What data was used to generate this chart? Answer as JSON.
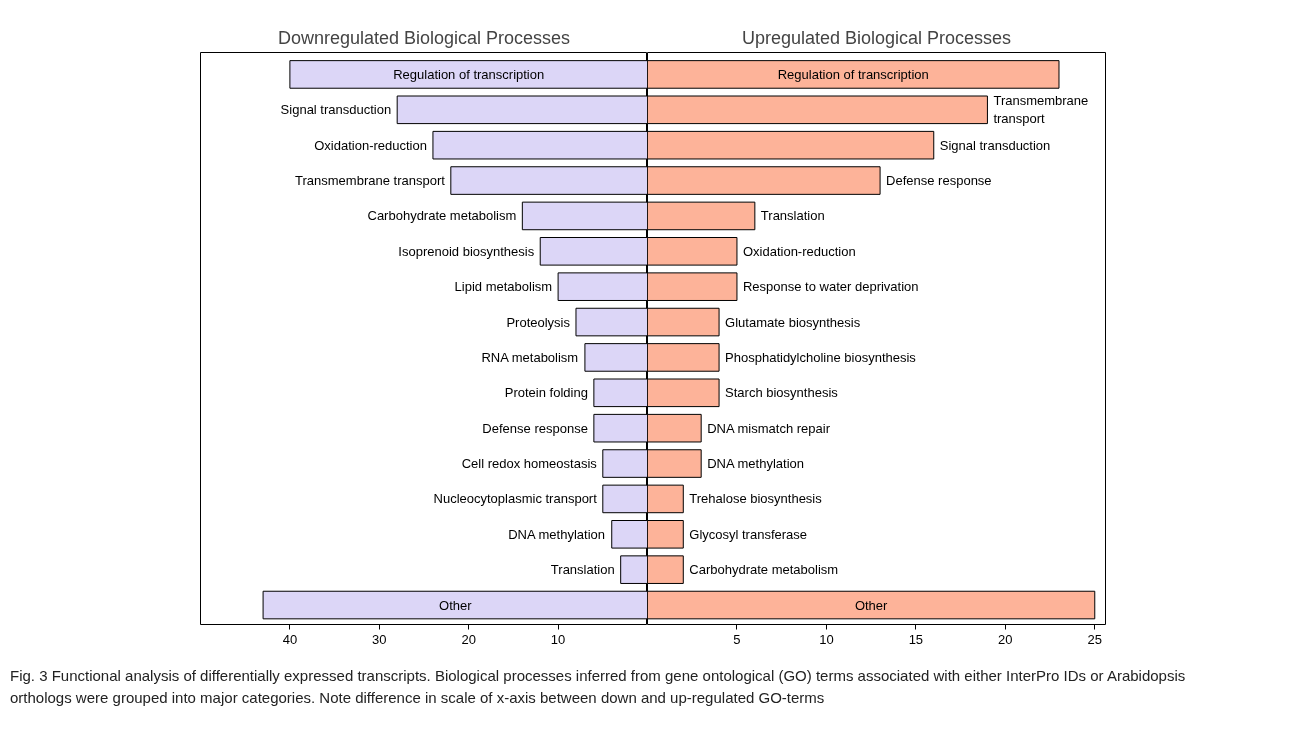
{
  "chart_data": [
    {
      "type": "bar",
      "orientation": "horizontal",
      "title": "Downregulated Biological Processes",
      "categories": [
        "Regulation of transcription",
        "Signal transduction",
        "Oxidation-reduction",
        "Transmembrane transport",
        "Carbohydrate metabolism",
        "Isoprenoid biosynthesis",
        "Lipid metabolism",
        "Proteolysis",
        "RNA metabolism",
        "Protein folding",
        "Defense response",
        "Cell redox homeostasis",
        "Nucleocytoplasmic transport",
        "DNA methylation",
        "Translation",
        "Other"
      ],
      "series": [
        {
          "color": "#dcd6f7",
          "values": [
            40,
            28,
            24,
            22,
            14,
            12,
            10,
            8,
            7,
            6,
            6,
            5,
            5,
            4,
            3,
            43
          ]
        }
      ],
      "xlim": [
        50,
        0
      ],
      "xticks": [
        40,
        30,
        20,
        10
      ],
      "tick_labels": "x"
    },
    {
      "type": "bar",
      "orientation": "horizontal",
      "title": "Upregulated Biological Processes",
      "categories": [
        "Regulation of transcription",
        "Transmembrane transport",
        "Signal transduction",
        "Defense response",
        "Translation",
        "Oxidation-reduction",
        "Response to water deprivation",
        "Glutamate biosynthesis",
        "Phosphatidylcholine biosynthesis",
        "Starch biosynthesis",
        "DNA mismatch repair",
        "DNA methylation",
        "Trehalose biosynthesis",
        "Glycosyl transferase",
        "Carbohydrate metabolism",
        "Other"
      ],
      "series": [
        {
          "color": "#fdb399",
          "values": [
            23,
            19,
            16,
            13,
            6,
            5,
            5,
            4,
            4,
            4,
            3,
            3,
            2,
            2,
            2,
            25
          ]
        }
      ],
      "xlim": [
        0,
        25.6
      ],
      "xticks": [
        5,
        10,
        15,
        20,
        25
      ],
      "tick_labels": "x",
      "annotations": [
        "Fig. 3 Functional analysis of differentially expressed transcripts. Biological processes inferred from gene ontological (GO) terms associated with either InterPro IDs or Arabidopsis orthologs were grouped into major categories. Note difference in scale of x-axis between down and up-regulated GO-terms"
      ]
    }
  ]
}
